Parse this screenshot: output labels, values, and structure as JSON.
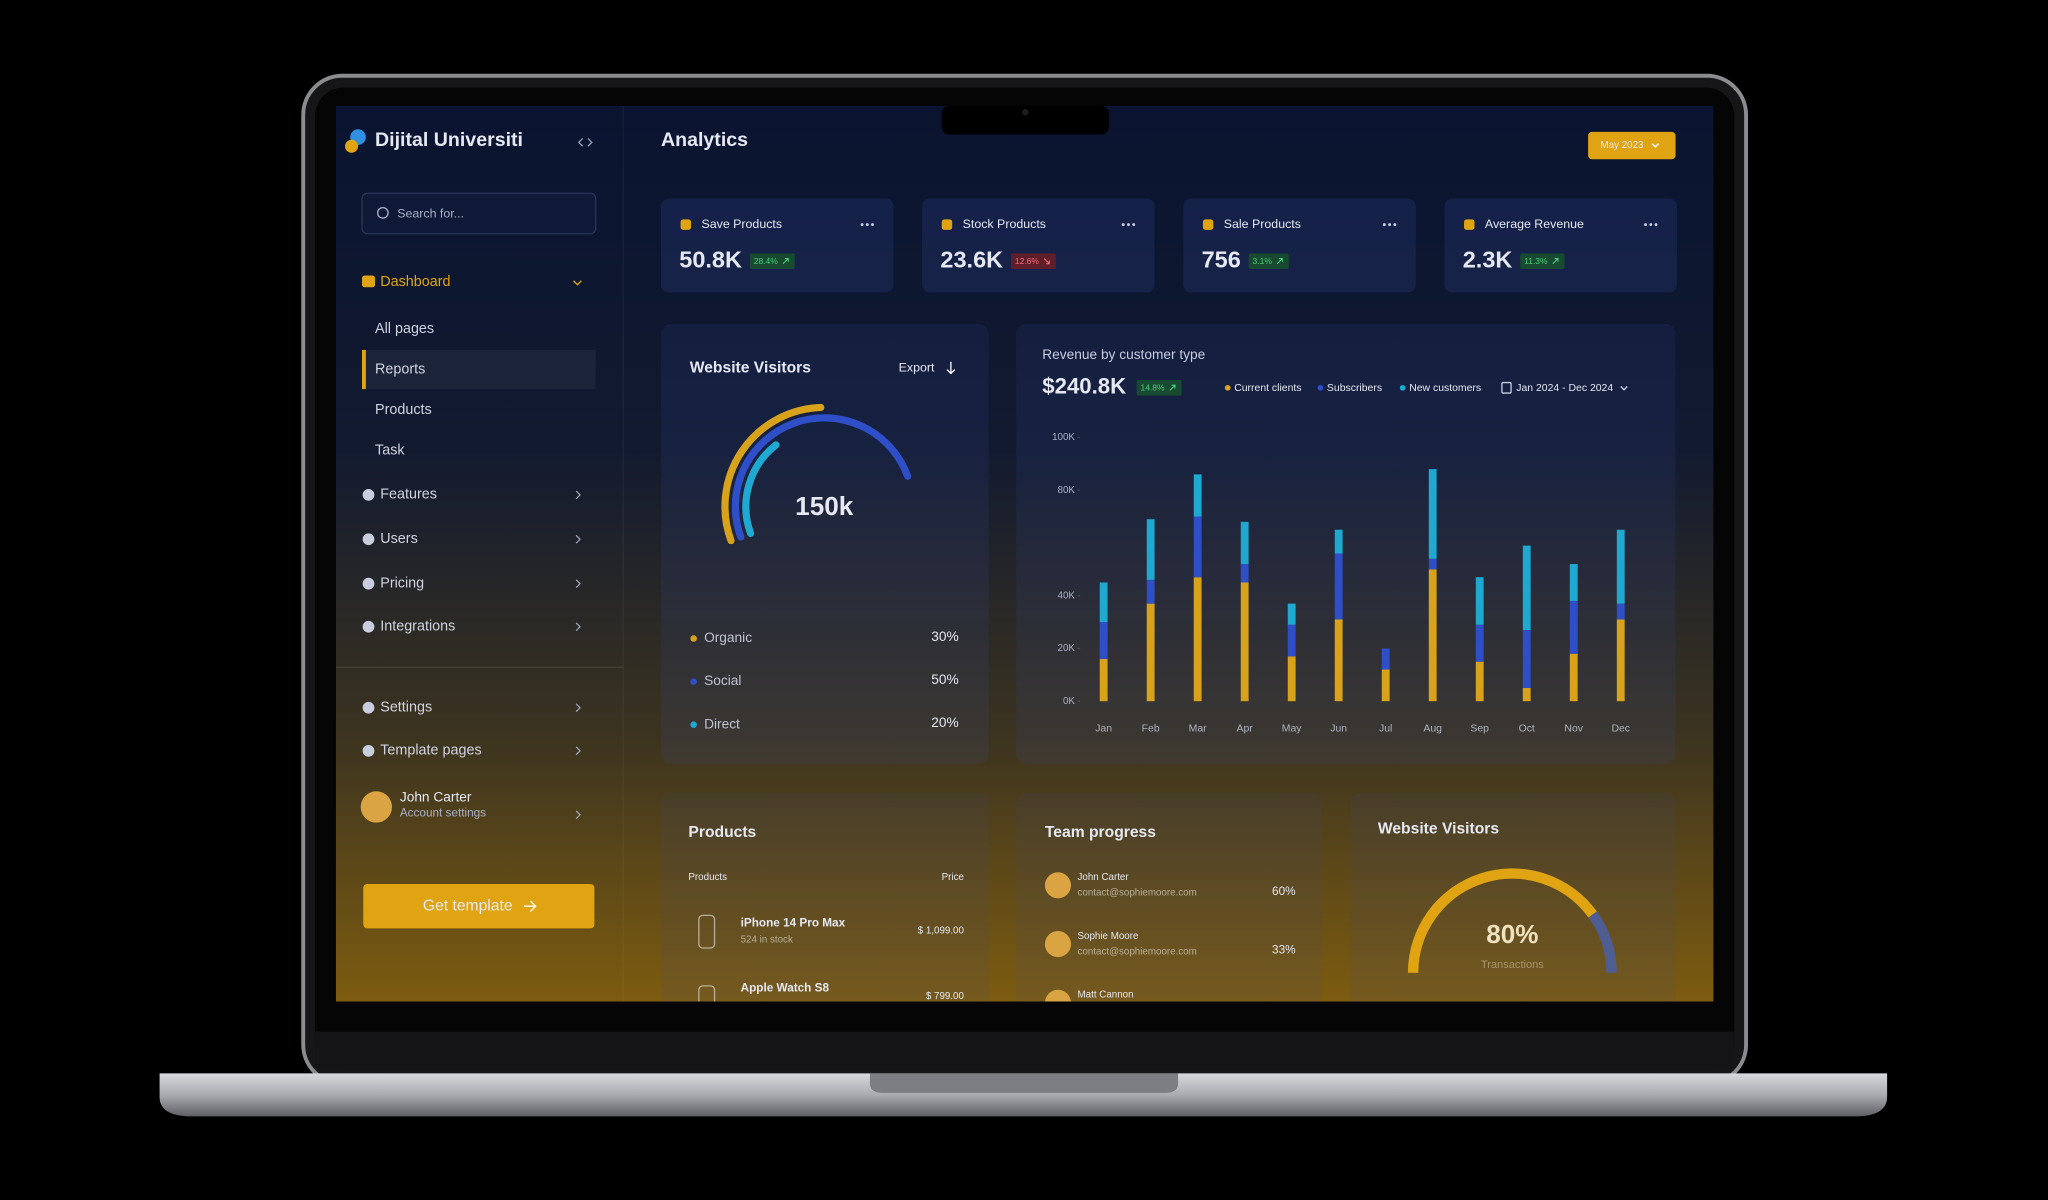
{
  "sidebar": {
    "brand": "Dijital Universiti",
    "search": "Search for...",
    "menu": [
      {
        "label": "Dashboard",
        "children": [
          "All pages",
          "Reports",
          "Products",
          "Task"
        ]
      },
      {
        "label": "Features"
      },
      {
        "label": "Users"
      },
      {
        "label": "Pricing"
      },
      {
        "label": "Integrations"
      }
    ],
    "menu2": [
      "Settings",
      "Template pages"
    ],
    "user": {
      "name": "John Carter",
      "subtitle": "Account settings"
    },
    "cta": "Get template"
  },
  "header": {
    "title": "Analytics",
    "date": "May 2023"
  },
  "stats": [
    {
      "label": "Save Products",
      "value": "50.8K",
      "change": "28.4%",
      "trend": "up"
    },
    {
      "label": "Stock Products",
      "value": "23.6K",
      "change": "12.6%",
      "trend": "down"
    },
    {
      "label": "Sale Products",
      "value": "756",
      "change": "3.1%",
      "trend": "up"
    },
    {
      "label": "Average Revenue",
      "value": "2.3K",
      "change": "11.3%",
      "trend": "up"
    }
  ],
  "visitors": {
    "title": "Website Visitors",
    "action": "Export",
    "total": "150k",
    "sources": [
      {
        "name": "Organic",
        "color": "#d9a21b",
        "value": 30,
        "value_label": "30%"
      },
      {
        "name": "Social",
        "color": "#2f4fc9",
        "value": 50,
        "value_label": "50%"
      },
      {
        "name": "Direct",
        "color": "#1fa9d0",
        "value": 20,
        "value_label": "20%"
      }
    ]
  },
  "revenue": {
    "title": "Revenue by customer type",
    "total": "$240.8K",
    "change": "14.8%",
    "range": "Jan 2024 - Dec 2024",
    "chart_data": {
      "type": "bar",
      "stacked": true,
      "categories": [
        "Jan",
        "Feb",
        "Mar",
        "Apr",
        "May",
        "Jun",
        "Jul",
        "Aug",
        "Sep",
        "Oct",
        "Nov",
        "Dec"
      ],
      "series": [
        {
          "name": "Current clients",
          "color": "#d9a21b",
          "values": [
            16,
            37,
            47,
            45,
            17,
            31,
            12,
            50,
            15,
            5,
            18,
            31
          ]
        },
        {
          "name": "Subscribers",
          "color": "#2f4fc9",
          "values": [
            14,
            9,
            23,
            7,
            12,
            25,
            8,
            4,
            14,
            22,
            20,
            6
          ]
        },
        {
          "name": "New customers",
          "color": "#1fa9d0",
          "values": [
            15,
            23,
            16,
            16,
            8,
            9,
            0,
            34,
            18,
            32,
            14,
            28
          ]
        }
      ],
      "ylim": [
        0,
        100
      ],
      "yticks": [
        {
          "value": 0,
          "label": "0K"
        },
        {
          "value": 20,
          "label": "20K"
        },
        {
          "value": 40,
          "label": "40K"
        },
        {
          "value": 80,
          "label": "80K"
        },
        {
          "value": 100,
          "label": "100K"
        }
      ]
    }
  },
  "products": {
    "title": "Products",
    "columns": [
      "Products",
      "Price"
    ],
    "rows": [
      {
        "name": "iPhone 14 Pro Max",
        "stock": "524 in stock",
        "price": "$ 1,099.00"
      },
      {
        "name": "Apple Watch S8",
        "price": "$ 799.00"
      }
    ]
  },
  "team": {
    "title": "Team progress",
    "members": [
      {
        "name": "John Carter",
        "email": "contact@sophiemoore.com",
        "progress": "60%"
      },
      {
        "name": "Sophie Moore",
        "email": "contact@sophiemoore.com",
        "progress": "33%"
      },
      {
        "name": "Matt Cannon"
      }
    ]
  },
  "transactions": {
    "title": "Website Visitors",
    "value": 80,
    "value_label": "80%",
    "label": "Transactions"
  }
}
